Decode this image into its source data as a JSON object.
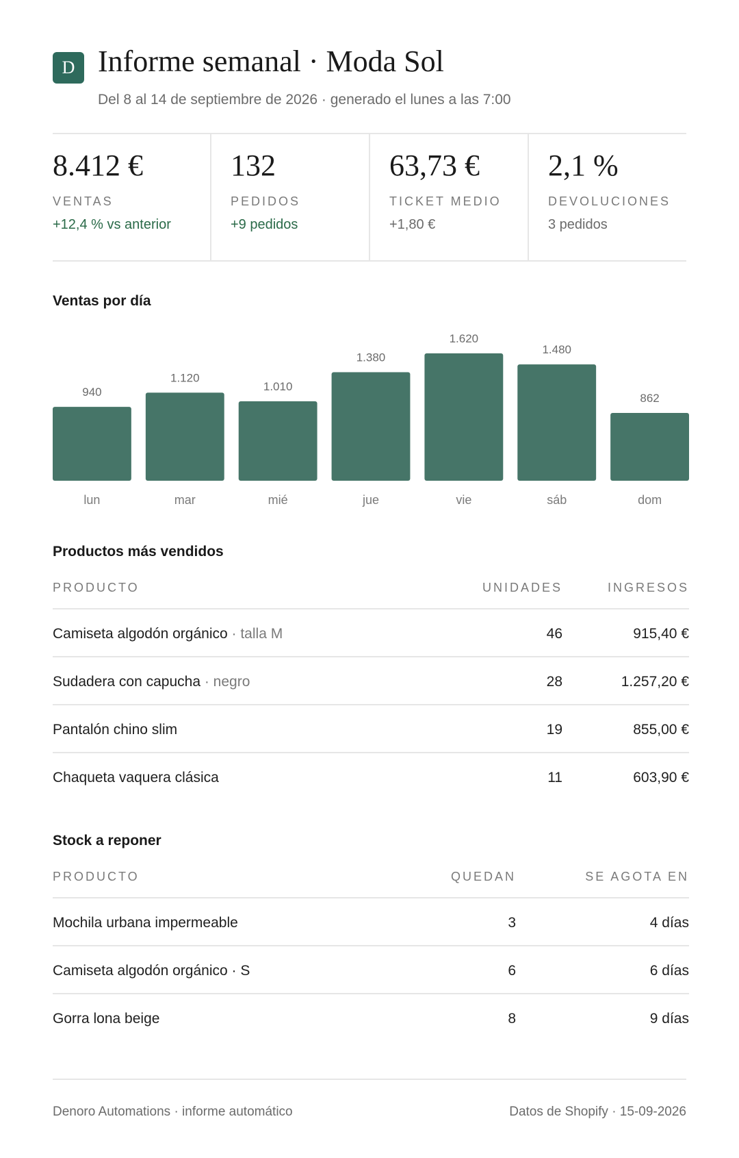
{
  "header": {
    "logo_letter": "D",
    "title": "Informe semanal · Moda Sol",
    "subtitle": "Del 8 al 14 de septiembre de 2026 · generado el lunes a las 7:00"
  },
  "kpis": [
    {
      "value": "8.412 €",
      "label": "VENTAS",
      "delta": "+12,4 % vs anterior",
      "tone": "positive"
    },
    {
      "value": "132",
      "label": "PEDIDOS",
      "delta": "+9 pedidos",
      "tone": "positive"
    },
    {
      "value": "63,73 €",
      "label": "TICKET MEDIO",
      "delta": "+1,80 €",
      "tone": "neutral"
    },
    {
      "value": "2,1 %",
      "label": "DEVOLUCIONES",
      "delta": "3 pedidos",
      "tone": "neutral"
    }
  ],
  "sales_section": {
    "title": "Ventas por día"
  },
  "chart_data": {
    "type": "bar",
    "title": "Ventas por día",
    "categories": [
      "lun",
      "mar",
      "mié",
      "jue",
      "vie",
      "sáb",
      "dom"
    ],
    "values": [
      940,
      1120,
      1010,
      1380,
      1620,
      1480,
      862
    ],
    "value_labels": [
      "940",
      "1.120",
      "1.010",
      "1.380",
      "1.620",
      "1.480",
      "862"
    ],
    "ylim": [
      0,
      1620
    ],
    "bar_color": "#467568",
    "grid": false,
    "legend": "none"
  },
  "top_products": {
    "title": "Productos más vendidos",
    "columns": [
      "PRODUCTO",
      "UNIDADES",
      "INGRESOS"
    ],
    "rows": [
      {
        "name": "Camiseta algodón orgánico",
        "variant": "· talla M",
        "units": "46",
        "revenue": "915,40 €"
      },
      {
        "name": "Sudadera con capucha",
        "variant": "· negro",
        "units": "28",
        "revenue": "1.257,20 €"
      },
      {
        "name": "Pantalón chino slim",
        "variant": "",
        "units": "19",
        "revenue": "855,00 €"
      },
      {
        "name": "Chaqueta vaquera clásica",
        "variant": "",
        "units": "11",
        "revenue": "603,90 €"
      }
    ]
  },
  "restock": {
    "title": "Stock a reponer",
    "columns": [
      "PRODUCTO",
      "QUEDAN",
      "SE AGOTA EN"
    ],
    "rows": [
      {
        "name": "Mochila urbana impermeable",
        "remaining": "3",
        "runs_out": "4 días"
      },
      {
        "name": "Camiseta algodón orgánico · S",
        "remaining": "6",
        "runs_out": "6 días"
      },
      {
        "name": "Gorra lona beige",
        "remaining": "8",
        "runs_out": "9 días"
      }
    ]
  },
  "footer": {
    "left": "Denoro Automations · informe automático",
    "right": "Datos de Shopify · 15-09-2026"
  }
}
